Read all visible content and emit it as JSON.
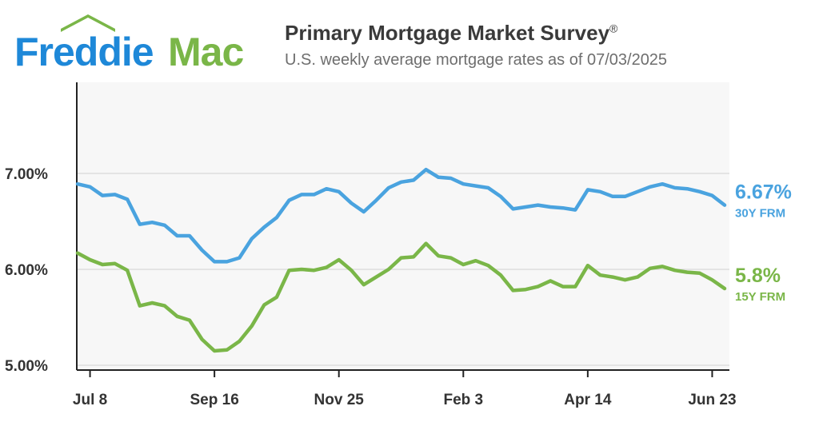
{
  "brand": {
    "logo_word1": "Freddie",
    "logo_word2": "Mac",
    "color_blue": "#1e88d8",
    "color_green": "#7ab648"
  },
  "header": {
    "title": "Primary Mortgage Market Survey",
    "title_mark": "®",
    "subtitle": "U.S. weekly average mortgage rates as of 07/03/2025"
  },
  "chart_data": {
    "type": "line",
    "x_tick_labels": [
      "Jul 8",
      "Sep 16",
      "Nov 25",
      "Feb 3",
      "Apr 14",
      "Jun 23"
    ],
    "x_tick_index": [
      1,
      11,
      21,
      31,
      41,
      51
    ],
    "y_tick_labels": [
      "7.00%",
      "6.00%",
      "5.00%"
    ],
    "y_tick_values": [
      7.0,
      6.0,
      5.0
    ],
    "ylim": [
      4.95,
      7.95
    ],
    "grid": "horizontal",
    "background": "#f7f7f7",
    "series": [
      {
        "name": "30Y FRM",
        "end_label": "6.67%",
        "color": "#4aa3df",
        "values": [
          6.89,
          6.86,
          6.77,
          6.78,
          6.73,
          6.47,
          6.49,
          6.46,
          6.35,
          6.35,
          6.2,
          6.08,
          6.08,
          6.12,
          6.32,
          6.44,
          6.54,
          6.72,
          6.78,
          6.78,
          6.84,
          6.81,
          6.69,
          6.6,
          6.72,
          6.85,
          6.91,
          6.93,
          7.04,
          6.96,
          6.95,
          6.89,
          6.87,
          6.85,
          6.76,
          6.63,
          6.65,
          6.67,
          6.65,
          6.64,
          6.62,
          6.83,
          6.81,
          6.76,
          6.76,
          6.81,
          6.86,
          6.89,
          6.85,
          6.84,
          6.81,
          6.77,
          6.67
        ]
      },
      {
        "name": "15Y FRM",
        "end_label": "5.8%",
        "color": "#7ab648",
        "values": [
          6.17,
          6.1,
          6.05,
          6.06,
          5.99,
          5.62,
          5.65,
          5.62,
          5.51,
          5.47,
          5.27,
          5.15,
          5.16,
          5.25,
          5.41,
          5.63,
          5.71,
          5.99,
          6.0,
          5.99,
          6.02,
          6.1,
          5.99,
          5.84,
          5.92,
          6.0,
          6.12,
          6.13,
          6.27,
          6.14,
          6.12,
          6.05,
          6.09,
          6.04,
          5.94,
          5.78,
          5.79,
          5.82,
          5.88,
          5.82,
          5.82,
          6.04,
          5.94,
          5.92,
          5.89,
          5.92,
          6.01,
          6.03,
          5.99,
          5.97,
          5.96,
          5.89,
          5.8
        ]
      }
    ]
  }
}
